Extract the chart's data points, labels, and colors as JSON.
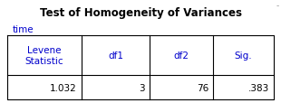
{
  "title": "Test of Homogeneity of Variances",
  "subtitle": "time",
  "col_headers": [
    "Levene\nStatistic",
    "df1",
    "df2",
    "Sig."
  ],
  "row_data": [
    "1.032",
    "3",
    "76",
    ".383"
  ],
  "title_color": "#000000",
  "subtitle_color": "#0000cc",
  "header_text_color": "#0000cc",
  "data_text_color": "#000000",
  "line_color": "#000000",
  "bg_color": "#ffffff",
  "title_fontsize": 8.5,
  "subtitle_fontsize": 7.5,
  "header_fontsize": 7.5,
  "data_fontsize": 7.5,
  "dash_color": "#999999",
  "fig_width": 3.1,
  "fig_height": 1.15,
  "dpi": 100
}
